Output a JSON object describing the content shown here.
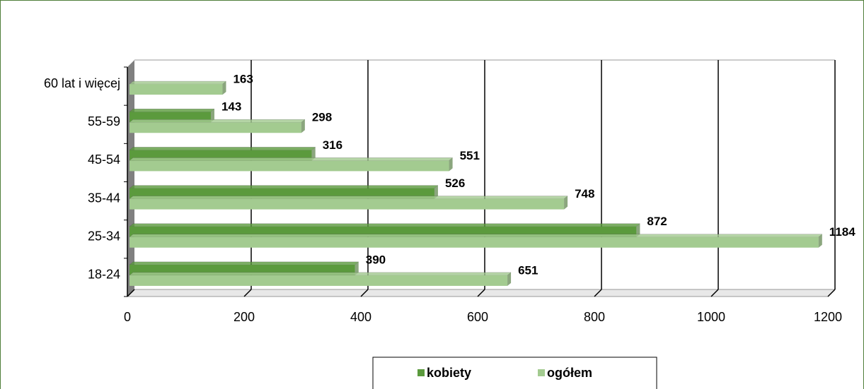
{
  "chart_data": {
    "type": "bar",
    "orientation": "horizontal",
    "categories": [
      "18-24",
      "25-34",
      "35-44",
      "45-54",
      "55-59",
      "60 lat i więcej"
    ],
    "series": [
      {
        "name": "kobiety",
        "color": "#5b9a3d",
        "values": [
          390,
          872,
          526,
          316,
          143,
          null
        ]
      },
      {
        "name": "ogółem",
        "color": "#a3cb90",
        "values": [
          651,
          1184,
          748,
          551,
          298,
          163
        ]
      }
    ],
    "xlim": [
      0,
      1200
    ],
    "xticks": [
      0,
      200,
      400,
      600,
      800,
      1000,
      1200
    ],
    "grid": true,
    "legend": "bottom"
  }
}
